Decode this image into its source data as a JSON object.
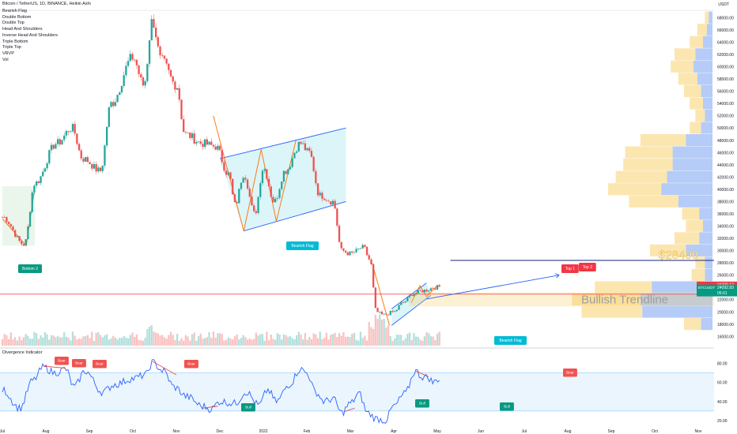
{
  "header": {
    "title": "Bitcoin / TetherUS, 1D, BINANCE, Heikin Ashi",
    "currency": "USDT"
  },
  "indicators": [
    "Bearish Flag",
    "Double Bottom",
    "Double Top",
    "Head And Shoulders",
    "Inverse Head And Shoulders",
    "Triple Bottom",
    "Triple Top",
    "VRVP",
    "Vol"
  ],
  "oscillator": {
    "title": "Divergence Indicator"
  },
  "colors": {
    "up": "#26a69a",
    "down": "#ef5350",
    "trend": "#2962ff",
    "pattern_line": "#ff6d00",
    "channel_fill": "#d6f3f7",
    "teal_label": "#089981",
    "cyan_label": "#00bcd4",
    "red_label": "#f23645",
    "vp_yellow": "#f9c74f",
    "vp_blue": "#5b8def"
  },
  "annotations": {
    "bottom2": "Bottom 2",
    "bearish_flag_1": "Bearish Flag",
    "bearish_flag_2": "Bearish Flag",
    "top1": "Top 1",
    "top2": "Top 2",
    "level_label": "$28400",
    "trend_label": "Bullish Trendline",
    "bear_tags": [
      "Bear",
      "Bear",
      "Bear",
      "Bear",
      "Bear"
    ],
    "bull_tags": [
      "Bull",
      "Bull",
      "Bull"
    ]
  },
  "price_tags": {
    "upper": "24399.12",
    "symbol": "BTCUSDT",
    "last": "24092.93",
    "countdown": "05:01"
  },
  "chart_data": [
    {
      "type": "candlestick",
      "title": "Bitcoin / TetherUS, 1D, BINANCE, Heikin Ashi",
      "y_ticks": [
        68000,
        66000,
        64000,
        62000,
        60000,
        58000,
        56000,
        54000,
        52000,
        50000,
        48000,
        46000,
        44000,
        42000,
        40000,
        38000,
        36000,
        34000,
        32000,
        30000,
        28000,
        26000,
        24000,
        22000,
        20000,
        18000,
        16000
      ],
      "x_ticks": [
        "Jul",
        "Aug",
        "Sep",
        "Oct",
        "Nov",
        "Dec",
        "2022",
        "Feb",
        "Mar",
        "Apr",
        "May",
        "Jun",
        "Jul",
        "Aug",
        "Sep",
        "Oct",
        "Nov"
      ],
      "ylim": [
        14500,
        70500
      ],
      "keyframes": [
        {
          "m": 0,
          "p": 35500
        },
        {
          "m": 0.5,
          "p": 31000
        },
        {
          "m": 0.75,
          "p": 41000
        },
        {
          "m": 1.25,
          "p": 47500
        },
        {
          "m": 1.6,
          "p": 50000
        },
        {
          "m": 1.85,
          "p": 45000
        },
        {
          "m": 2.25,
          "p": 43000
        },
        {
          "m": 2.5,
          "p": 54000
        },
        {
          "m": 3.0,
          "p": 61500
        },
        {
          "m": 3.25,
          "p": 57000
        },
        {
          "m": 3.45,
          "p": 67500
        },
        {
          "m": 3.65,
          "p": 61000
        },
        {
          "m": 4.0,
          "p": 57000
        },
        {
          "m": 4.2,
          "p": 49000
        },
        {
          "m": 4.6,
          "p": 47500
        },
        {
          "m": 4.9,
          "p": 47000
        },
        {
          "m": 5.2,
          "p": 42500
        },
        {
          "m": 5.35,
          "p": 37500
        },
        {
          "m": 5.55,
          "p": 42500
        },
        {
          "m": 5.8,
          "p": 36000
        },
        {
          "m": 6.0,
          "p": 43500
        },
        {
          "m": 6.25,
          "p": 38000
        },
        {
          "m": 6.5,
          "p": 43000
        },
        {
          "m": 6.85,
          "p": 47500
        },
        {
          "m": 7.05,
          "p": 46000
        },
        {
          "m": 7.3,
          "p": 39000
        },
        {
          "m": 7.6,
          "p": 38000
        },
        {
          "m": 7.8,
          "p": 30000
        },
        {
          "m": 8.0,
          "p": 29500
        },
        {
          "m": 8.3,
          "p": 30500
        },
        {
          "m": 8.45,
          "p": 28500
        },
        {
          "m": 8.6,
          "p": 20000
        },
        {
          "m": 8.75,
          "p": 19500
        },
        {
          "m": 9.0,
          "p": 20000
        },
        {
          "m": 9.2,
          "p": 21500
        },
        {
          "m": 9.45,
          "p": 23000
        },
        {
          "m": 9.7,
          "p": 23500
        },
        {
          "m": 9.95,
          "p": 24000
        },
        {
          "m": 10.05,
          "p": 24100
        }
      ],
      "patterns": {
        "double_bottom": [
          {
            "m": 0,
            "p": 35200
          },
          {
            "m": 0.55,
            "p": 30800
          },
          {
            "m": 0.75,
            "p": 40500
          }
        ],
        "bearish_flag_pole": [
          {
            "m": 4.85,
            "p": 52000
          },
          {
            "m": 5.55,
            "p": 33200
          }
        ],
        "flag_zigzag": [
          {
            "m": 5.55,
            "p": 33200
          },
          {
            "m": 5.95,
            "p": 46500
          },
          {
            "m": 6.3,
            "p": 34800
          },
          {
            "m": 6.75,
            "p": 48000
          }
        ],
        "flag_channel_upper": [
          {
            "m": 5.0,
            "p": 45000
          },
          {
            "m": 7.9,
            "p": 50000
          }
        ],
        "flag_channel_lower": [
          {
            "m": 5.55,
            "p": 33200
          },
          {
            "m": 7.9,
            "p": 38000
          }
        ],
        "flag2_pole": [
          {
            "m": 8.5,
            "p": 28000
          },
          {
            "m": 8.9,
            "p": 17800
          }
        ],
        "flag2_upper": [
          {
            "m": 8.95,
            "p": 20500
          },
          {
            "m": 9.75,
            "p": 24700
          }
        ],
        "flag2_lower": [
          {
            "m": 8.95,
            "p": 17800
          },
          {
            "m": 9.85,
            "p": 22700
          }
        ],
        "top_zigzag": [
          {
            "m": 9.4,
            "p": 21500
          },
          {
            "m": 9.6,
            "p": 24300
          },
          {
            "m": 9.75,
            "p": 22500
          },
          {
            "m": 10.0,
            "p": 24300
          }
        ]
      },
      "resistance_level": 28400,
      "red_level": 22900,
      "trendline": [
        {
          "m": 9.75,
          "p": 22100
        },
        {
          "m": 12.8,
          "p": 26000
        }
      ],
      "volume_profile": [
        {
          "p": 68000,
          "u": 0.02,
          "d": 0.02
        },
        {
          "p": 66000,
          "u": 0.05,
          "d": 0.03
        },
        {
          "p": 64000,
          "u": 0.07,
          "d": 0.05
        },
        {
          "p": 62000,
          "u": 0.11,
          "d": 0.09
        },
        {
          "p": 60000,
          "u": 0.12,
          "d": 0.1
        },
        {
          "p": 58000,
          "u": 0.1,
          "d": 0.08
        },
        {
          "p": 56000,
          "u": 0.09,
          "d": 0.06
        },
        {
          "p": 54000,
          "u": 0.07,
          "d": 0.05
        },
        {
          "p": 52000,
          "u": 0.05,
          "d": 0.04
        },
        {
          "p": 50000,
          "u": 0.06,
          "d": 0.06
        },
        {
          "p": 48000,
          "u": 0.24,
          "d": 0.14
        },
        {
          "p": 46000,
          "u": 0.25,
          "d": 0.21
        },
        {
          "p": 44000,
          "u": 0.26,
          "d": 0.21
        },
        {
          "p": 42000,
          "u": 0.27,
          "d": 0.24
        },
        {
          "p": 40000,
          "u": 0.28,
          "d": 0.27
        },
        {
          "p": 38000,
          "u": 0.26,
          "d": 0.18
        },
        {
          "p": 36000,
          "u": 0.09,
          "d": 0.07
        },
        {
          "p": 34000,
          "u": 0.09,
          "d": 0.05
        },
        {
          "p": 32000,
          "u": 0.13,
          "d": 0.07
        },
        {
          "p": 30000,
          "u": 0.19,
          "d": 0.14
        },
        {
          "p": 28000,
          "u": 0.05,
          "d": 0.04
        },
        {
          "p": 26000,
          "u": 0.07,
          "d": 0.04
        },
        {
          "p": 24000,
          "u": 0.3,
          "d": 0.32
        },
        {
          "p": 22000,
          "u": 0.36,
          "d": 0.38
        },
        {
          "p": 20000,
          "u": 0.32,
          "d": 0.37
        },
        {
          "p": 18000,
          "u": 0.09,
          "d": 0.06
        }
      ]
    },
    {
      "type": "line",
      "title": "Divergence Indicator",
      "y_ticks": [
        80,
        60,
        40,
        20
      ],
      "ylim": [
        10,
        87
      ],
      "band": [
        30,
        70
      ],
      "keyframes": [
        {
          "m": 0,
          "p": 52
        },
        {
          "m": 0.4,
          "p": 33
        },
        {
          "m": 0.7,
          "p": 62
        },
        {
          "m": 0.95,
          "p": 76
        },
        {
          "m": 1.2,
          "p": 70
        },
        {
          "m": 1.45,
          "p": 74
        },
        {
          "m": 1.65,
          "p": 55
        },
        {
          "m": 1.9,
          "p": 72
        },
        {
          "m": 2.3,
          "p": 50
        },
        {
          "m": 2.6,
          "p": 58
        },
        {
          "m": 3.0,
          "p": 64
        },
        {
          "m": 3.3,
          "p": 68
        },
        {
          "m": 3.45,
          "p": 81
        },
        {
          "m": 3.7,
          "p": 72
        },
        {
          "m": 3.95,
          "p": 55
        },
        {
          "m": 4.25,
          "p": 45
        },
        {
          "m": 4.6,
          "p": 35
        },
        {
          "m": 4.8,
          "p": 32
        },
        {
          "m": 5.0,
          "p": 40
        },
        {
          "m": 5.35,
          "p": 38
        },
        {
          "m": 5.6,
          "p": 50
        },
        {
          "m": 5.9,
          "p": 36
        },
        {
          "m": 6.1,
          "p": 52
        },
        {
          "m": 6.3,
          "p": 40
        },
        {
          "m": 6.6,
          "p": 58
        },
        {
          "m": 6.85,
          "p": 74
        },
        {
          "m": 7.0,
          "p": 70
        },
        {
          "m": 7.2,
          "p": 50
        },
        {
          "m": 7.4,
          "p": 40
        },
        {
          "m": 7.6,
          "p": 43
        },
        {
          "m": 7.8,
          "p": 28
        },
        {
          "m": 8.0,
          "p": 38
        },
        {
          "m": 8.2,
          "p": 48
        },
        {
          "m": 8.4,
          "p": 28
        },
        {
          "m": 8.6,
          "p": 22
        },
        {
          "m": 8.8,
          "p": 20
        },
        {
          "m": 9.0,
          "p": 35
        },
        {
          "m": 9.25,
          "p": 48
        },
        {
          "m": 9.5,
          "p": 72
        },
        {
          "m": 9.65,
          "p": 66
        },
        {
          "m": 9.8,
          "p": 65
        },
        {
          "m": 9.9,
          "p": 60
        },
        {
          "m": 10.05,
          "p": 64
        }
      ],
      "divergence_lines": [
        [
          {
            "m": 0.95,
            "p": 77
          },
          {
            "m": 1.45,
            "p": 75
          }
        ],
        [
          {
            "m": 3.45,
            "p": 82
          },
          {
            "m": 4.0,
            "p": 68
          }
        ],
        [
          {
            "m": 4.6,
            "p": 33
          },
          {
            "m": 4.95,
            "p": 35
          }
        ],
        [
          {
            "m": 7.85,
            "p": 29
          },
          {
            "m": 8.1,
            "p": 33
          }
        ],
        [
          {
            "m": 9.5,
            "p": 72
          },
          {
            "m": 9.8,
            "p": 66
          }
        ]
      ]
    }
  ]
}
